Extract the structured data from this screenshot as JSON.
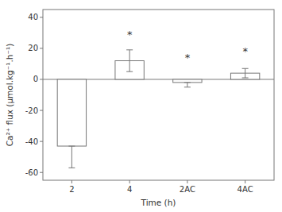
{
  "chart_data": {
    "type": "bar",
    "categories": [
      "2",
      "4",
      "2AC",
      "4AC"
    ],
    "values": [
      -43,
      12,
      -2,
      4
    ],
    "errors_lower": [
      14,
      7,
      3,
      3
    ],
    "errors_upper": [
      0,
      7,
      0,
      3
    ],
    "annotations": [
      {
        "text": "*",
        "x": "4",
        "y": 29
      },
      {
        "text": "*",
        "x": "2AC",
        "y": 14
      },
      {
        "text": "*",
        "x": "4AC",
        "y": 18
      }
    ],
    "color": "#ffffff",
    "xlabel": "Time (h)",
    "ylabel": "Ca²⁺ flux (μmol.kg⁻¹.h⁻¹)",
    "ylim": [
      -65,
      45
    ],
    "yticks": [
      -60,
      -40,
      -20,
      0,
      20,
      40
    ],
    "grid": false
  }
}
